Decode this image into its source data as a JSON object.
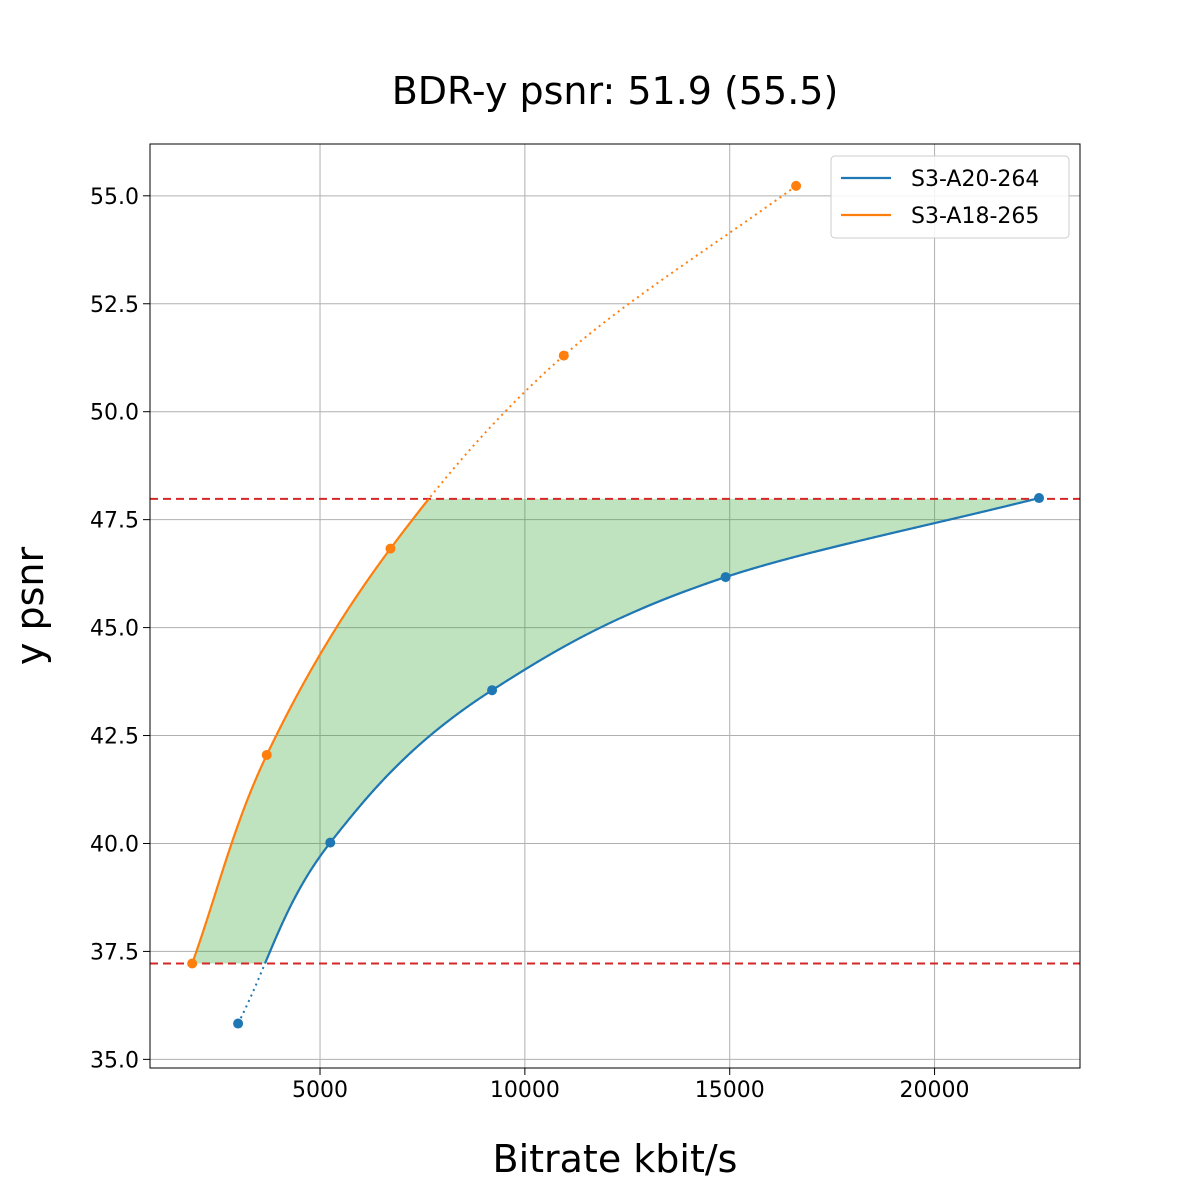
{
  "chart_data": {
    "type": "line",
    "title": "BDR-y psnr: 51.9 (55.5)",
    "xlabel": "Bitrate kbit/s",
    "ylabel": "y psnr",
    "xlim": [
      850,
      23550
    ],
    "ylim": [
      34.8,
      56.2
    ],
    "xticks": [
      5000,
      10000,
      15000,
      20000
    ],
    "xtick_labels": [
      "5000",
      "10000",
      "15000",
      "20000"
    ],
    "yticks": [
      35.0,
      37.5,
      40.0,
      42.5,
      45.0,
      47.5,
      50.0,
      52.5,
      55.0
    ],
    "ytick_labels": [
      "35.0",
      "37.5",
      "40.0",
      "42.5",
      "45.0",
      "47.5",
      "50.0",
      "52.5",
      "55.0"
    ],
    "grid": true,
    "legend": "top-right",
    "hlines": [
      {
        "y": 47.98,
        "color": "#d62728",
        "style": "dashed"
      },
      {
        "y": 37.22,
        "color": "#d62728",
        "style": "dashed"
      }
    ],
    "fill_color": "#2ca02c",
    "fill_opacity": 0.3,
    "series": [
      {
        "name": "S3-A20-264",
        "color": "#1f77b4",
        "x": [
          3000,
          5250,
          9200,
          14900,
          22550
        ],
        "y": [
          35.83,
          40.02,
          43.55,
          46.17,
          48.0
        ]
      },
      {
        "name": "S3-A18-265",
        "color": "#ff7f0e",
        "x": [
          1880,
          3700,
          6720,
          10950,
          16620
        ],
        "y": [
          37.22,
          42.05,
          46.83,
          51.3,
          55.23
        ]
      }
    ]
  }
}
